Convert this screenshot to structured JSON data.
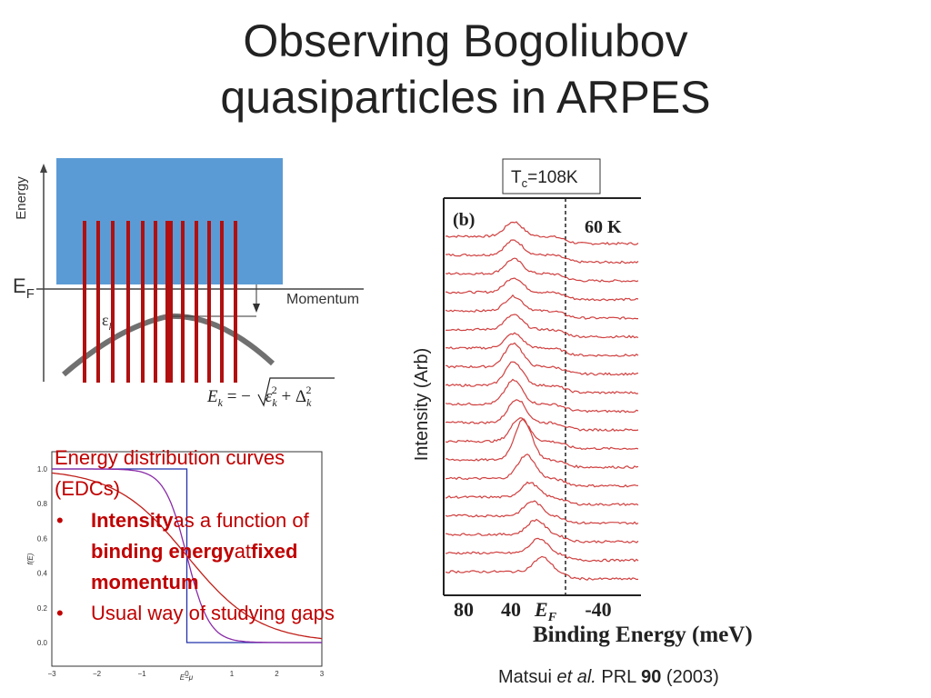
{
  "title_lines": [
    "Observing Bogoliubov",
    "quasiparticles in ARPES"
  ],
  "diagram": {
    "energy_label": "Energy",
    "ef_main": "E",
    "ef_sub": "F",
    "momentum_label": "Momentum",
    "eps_main": "ε",
    "eps_sub": "k",
    "formula": {
      "lhs": "E",
      "lhs_sub": "k",
      "eq": " = −",
      "eps": "ε",
      "eps_sub": "k",
      "sup1": "2",
      "plus": " + Δ",
      "delta_sub": "k",
      "sup2": "2"
    }
  },
  "fermi_plot": {
    "yticks": [
      "0.0",
      "0.2",
      "0.4",
      "0.6",
      "0.8",
      "1.0"
    ],
    "xticks": [
      "−3",
      "−2",
      "−1",
      "0",
      "1",
      "2",
      "3"
    ],
    "ylabel": "f(E)",
    "xlabel": "E−μ"
  },
  "text_box": {
    "heading": "Energy distribution curves (EDCs)",
    "bullets": [
      [
        {
          "text": "Intensity",
          "bold": true
        },
        {
          "text": " as a function of ",
          "bold": false
        },
        {
          "text": "binding energy",
          "bold": true
        },
        {
          "text": " at ",
          "bold": false
        },
        {
          "text": "fixed momentum",
          "bold": true
        }
      ],
      [
        {
          "text": "Usual way of studying gaps",
          "bold": false
        }
      ]
    ]
  },
  "edc_figure": {
    "tc_main": "T",
    "tc_sub": "c",
    "tc_rest": "=108K",
    "panel_label": "(b)",
    "temperature": "60 K",
    "ylabel": "Intensity (Arb)",
    "xticks": [
      "80",
      "40",
      "-40"
    ],
    "ef_main": "E",
    "ef_sub": "F",
    "xlabel": "Binding Energy (meV)"
  },
  "citation": {
    "authors": "Matsui ",
    "etal": "et al.",
    "journal": " PRL ",
    "volume": "90",
    "year": " (2003)"
  }
}
